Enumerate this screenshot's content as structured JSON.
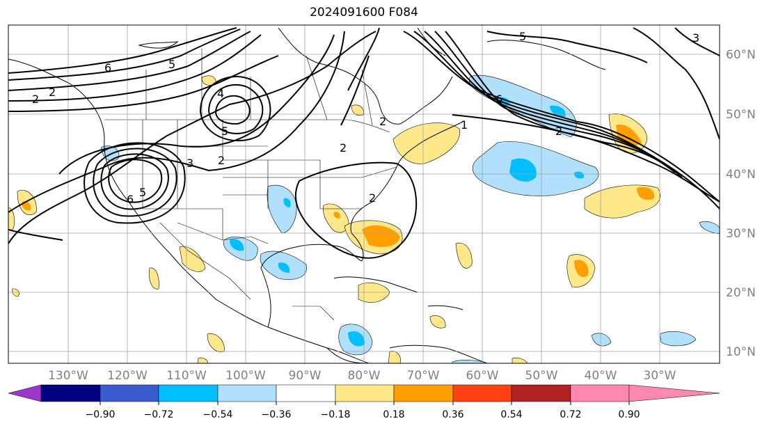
{
  "title": "2024091600 F084",
  "map": {
    "lon_range": [
      -140,
      -20
    ],
    "lat_range": [
      8,
      65
    ],
    "lat_ticks": [
      "10°N",
      "20°N",
      "30°N",
      "40°N",
      "50°N",
      "60°N"
    ],
    "lon_ticks": [
      "130°W",
      "120°W",
      "110°W",
      "100°W",
      "90°W",
      "80°W",
      "70°W",
      "60°W",
      "50°W",
      "40°W",
      "30°W"
    ],
    "grid": true
  },
  "colorbar": {
    "orientation": "horizontal",
    "extend": "both",
    "levels": [
      "−0.90",
      "−0.72",
      "−0.54",
      "−0.36",
      "−0.18",
      "0.18",
      "0.36",
      "0.54",
      "0.72",
      "0.90"
    ],
    "colors": [
      "#9b36c8",
      "#000080",
      "#3b5bd0",
      "#00bfff",
      "#b0e0fc",
      "#ffffff",
      "#ffe88a",
      "#ffa000",
      "#ff4010",
      "#b22222",
      "#ff88b0"
    ]
  },
  "contour_labels": [
    "6",
    "5",
    "2",
    "2",
    "4",
    "5",
    "3",
    "2",
    "6",
    "5",
    "2",
    "1",
    "6",
    "2",
    "5",
    "3",
    "2",
    "2"
  ]
}
